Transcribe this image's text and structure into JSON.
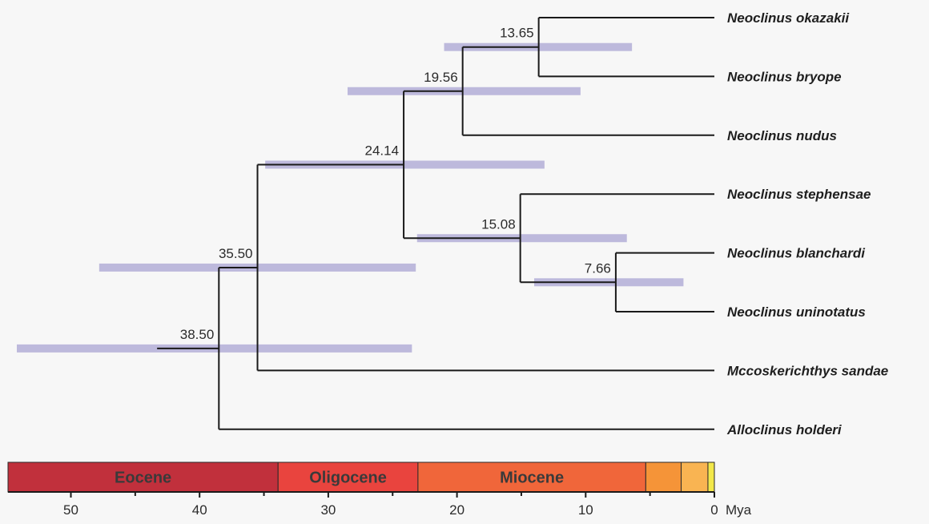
{
  "tree": {
    "taxa": [
      {
        "id": "okazakii",
        "label": "Neoclinus okazakii"
      },
      {
        "id": "bryope",
        "label": "Neoclinus bryope"
      },
      {
        "id": "nudus",
        "label": "Neoclinus nudus"
      },
      {
        "id": "stephensae",
        "label": "Neoclinus stephensae"
      },
      {
        "id": "blanchardi",
        "label": "Neoclinus blanchardi"
      },
      {
        "id": "uninotatus",
        "label": "Neoclinus uninotatus"
      },
      {
        "id": "sandae",
        "label": "Mccoskerichthys sandae"
      },
      {
        "id": "holderi",
        "label": "Alloclinus holderi"
      }
    ],
    "nodes": [
      {
        "id": "n1",
        "age": 13.65,
        "label": "13.65",
        "hpd": [
          21.0,
          6.4
        ],
        "children": [
          "okazakii",
          "bryope"
        ]
      },
      {
        "id": "n2",
        "age": 19.56,
        "label": "19.56",
        "hpd": [
          28.5,
          10.4
        ],
        "children": [
          "n1",
          "nudus"
        ]
      },
      {
        "id": "n3",
        "age": 7.66,
        "label": "7.66",
        "hpd": [
          14.0,
          2.4
        ],
        "children": [
          "blanchardi",
          "uninotatus"
        ]
      },
      {
        "id": "n4",
        "age": 15.08,
        "label": "15.08",
        "hpd": [
          23.1,
          6.8
        ],
        "children": [
          "stephensae",
          "n3"
        ]
      },
      {
        "id": "n5",
        "age": 24.14,
        "label": "24.14",
        "hpd": [
          34.9,
          13.2
        ],
        "children": [
          "n2",
          "n4"
        ]
      },
      {
        "id": "n6",
        "age": 35.5,
        "label": "35.50",
        "hpd": [
          47.8,
          23.2
        ],
        "children": [
          "n5",
          "sandae"
        ]
      },
      {
        "id": "n7",
        "age": 38.5,
        "label": "38.50",
        "hpd": [
          54.2,
          23.5
        ],
        "children": [
          "n6",
          "holderi"
        ]
      }
    ],
    "root_stem_age": 43.3
  },
  "timescale": {
    "unit": "Mya",
    "max_age": 55,
    "ticks": [
      50,
      40,
      30,
      20,
      10,
      0
    ],
    "minor_ticks": [
      45,
      35,
      25,
      15,
      5
    ],
    "epochs": [
      {
        "name": "Eocene",
        "start": 55,
        "end": 33.9,
        "color": "#c1303c"
      },
      {
        "name": "Oligocene",
        "start": 33.9,
        "end": 23.03,
        "color": "#e9443e"
      },
      {
        "name": "Miocene",
        "start": 23.03,
        "end": 5.33,
        "color": "#f0663a"
      },
      {
        "name": "",
        "start": 5.33,
        "end": 2.58,
        "color": "#f59438"
      },
      {
        "name": "",
        "start": 2.58,
        "end": 0.5,
        "color": "#f9b452"
      },
      {
        "name": "",
        "start": 0.5,
        "end": 0,
        "color": "#f2e84a"
      }
    ]
  }
}
